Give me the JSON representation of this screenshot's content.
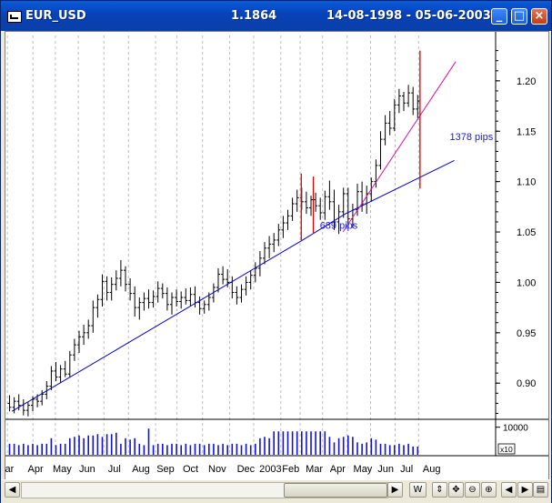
{
  "window": {
    "symbol": "EUR_USD",
    "last_price": "1.1864",
    "date_range": "14-08-1998 - 05-06-2003",
    "buttons": {
      "minimize": "_",
      "maximize": "□",
      "close": "×"
    }
  },
  "toolbar": {
    "period_label": "W"
  },
  "colors": {
    "bars": "#000000",
    "trendline": "#0000cc",
    "steep_trendline": "#e0109a",
    "marker": "#e00000",
    "volume": "#1010e0",
    "annotation": "#1a1acc"
  },
  "chart_data": [
    {
      "type": "ohlc",
      "title": "",
      "xlabel": "",
      "ylabel": "",
      "ylim": [
        0.865,
        1.245
      ],
      "yticks": [
        "0.90",
        "0.95",
        "1.00",
        "1.05",
        "1.10",
        "1.15",
        "1.20"
      ],
      "yticks_values": [
        0.9,
        0.95,
        1.0,
        1.05,
        1.1,
        1.15,
        1.2
      ],
      "xticks": [
        "ar",
        "Apr",
        "May",
        "Jun",
        "Jul",
        "Aug",
        "Sep",
        "Oct",
        "Nov",
        "Dec",
        "2003",
        "Feb",
        "Mar",
        "Apr",
        "May",
        "Jun",
        "Jul",
        "Aug"
      ],
      "grid": "vertical dashed at month boundaries",
      "series": [
        {
          "ohlc": [
            [
              0.88,
              0.888,
              0.872,
              0.876
            ],
            [
              0.876,
              0.886,
              0.87,
              0.882
            ],
            [
              0.882,
              0.889,
              0.873,
              0.878
            ],
            [
              0.878,
              0.884,
              0.868,
              0.873
            ],
            [
              0.873,
              0.881,
              0.867,
              0.878
            ],
            [
              0.878,
              0.887,
              0.872,
              0.884
            ],
            [
              0.884,
              0.889,
              0.876,
              0.882
            ],
            [
              0.882,
              0.893,
              0.878,
              0.889
            ],
            [
              0.889,
              0.902,
              0.884,
              0.897
            ],
            [
              0.897,
              0.917,
              0.893,
              0.912
            ],
            [
              0.912,
              0.921,
              0.902,
              0.906
            ],
            [
              0.906,
              0.918,
              0.9,
              0.914
            ],
            [
              0.914,
              0.922,
              0.906,
              0.909
            ],
            [
              0.909,
              0.932,
              0.906,
              0.928
            ],
            [
              0.928,
              0.944,
              0.922,
              0.938
            ],
            [
              0.938,
              0.952,
              0.93,
              0.946
            ],
            [
              0.946,
              0.958,
              0.938,
              0.95
            ],
            [
              0.95,
              0.963,
              0.944,
              0.957
            ],
            [
              0.957,
              0.982,
              0.95,
              0.975
            ],
            [
              0.975,
              0.988,
              0.965,
              0.983
            ],
            [
              0.983,
              1.008,
              0.976,
              1.001
            ],
            [
              1.001,
              1.006,
              0.982,
              0.99
            ],
            [
              0.99,
              1.005,
              0.982,
              0.998
            ],
            [
              0.998,
              1.012,
              0.992,
              1.004
            ],
            [
              1.004,
              1.022,
              0.996,
              1.012
            ],
            [
              1.012,
              1.016,
              0.991,
              0.998
            ],
            [
              0.998,
              1.004,
              0.982,
              0.989
            ],
            [
              0.989,
              0.996,
              0.966,
              0.975
            ],
            [
              0.975,
              0.985,
              0.963,
              0.98
            ],
            [
              0.98,
              0.99,
              0.972,
              0.984
            ],
            [
              0.984,
              0.993,
              0.974,
              0.98
            ],
            [
              0.98,
              0.992,
              0.975,
              0.986
            ],
            [
              0.986,
              1.001,
              0.98,
              0.994
            ],
            [
              0.994,
              0.999,
              0.984,
              0.989
            ],
            [
              0.989,
              0.995,
              0.972,
              0.978
            ],
            [
              0.978,
              0.99,
              0.968,
              0.985
            ],
            [
              0.985,
              0.993,
              0.976,
              0.981
            ],
            [
              0.981,
              0.991,
              0.974,
              0.985
            ],
            [
              0.985,
              0.994,
              0.978,
              0.982
            ],
            [
              0.982,
              0.995,
              0.976,
              0.988
            ],
            [
              0.988,
              0.996,
              0.975,
              0.98
            ],
            [
              0.98,
              0.986,
              0.968,
              0.974
            ],
            [
              0.974,
              0.982,
              0.969,
              0.978
            ],
            [
              0.978,
              0.99,
              0.972,
              0.985
            ],
            [
              0.985,
              0.999,
              0.98,
              0.995
            ],
            [
              0.995,
              1.014,
              0.99,
              1.008
            ],
            [
              1.008,
              1.016,
              0.998,
              1.003
            ],
            [
              1.003,
              1.013,
              0.995,
              1.0
            ],
            [
              1.0,
              1.006,
              0.984,
              0.99
            ],
            [
              0.99,
              0.996,
              0.978,
              0.985
            ],
            [
              0.985,
              0.998,
              0.98,
              0.993
            ],
            [
              0.993,
              1.006,
              0.987,
              1.0
            ],
            [
              1.0,
              1.012,
              0.993,
              1.007
            ],
            [
              1.007,
              1.02,
              1.0,
              1.014
            ],
            [
              1.014,
              1.031,
              1.006,
              1.024
            ],
            [
              1.024,
              1.04,
              1.018,
              1.034
            ],
            [
              1.034,
              1.046,
              1.024,
              1.038
            ],
            [
              1.038,
              1.049,
              1.03,
              1.042
            ],
            [
              1.042,
              1.058,
              1.036,
              1.052
            ],
            [
              1.052,
              1.066,
              1.044,
              1.059
            ],
            [
              1.059,
              1.072,
              1.052,
              1.066
            ],
            [
              1.066,
              1.084,
              1.061,
              1.078
            ],
            [
              1.078,
              1.092,
              1.07,
              1.084
            ],
            [
              1.084,
              1.094,
              1.072,
              1.08
            ],
            [
              1.08,
              1.09,
              1.068,
              1.074
            ],
            [
              1.074,
              1.086,
              1.066,
              1.082
            ],
            [
              1.082,
              1.089,
              1.07,
              1.076
            ],
            [
              1.076,
              1.084,
              1.062,
              1.069
            ],
            [
              1.069,
              1.091,
              1.062,
              1.085
            ],
            [
              1.085,
              1.101,
              1.072,
              1.08
            ],
            [
              1.08,
              1.092,
              1.052,
              1.06
            ],
            [
              1.06,
              1.077,
              1.048,
              1.07
            ],
            [
              1.07,
              1.094,
              1.064,
              1.088
            ],
            [
              1.088,
              1.094,
              1.054,
              1.063
            ],
            [
              1.063,
              1.078,
              1.054,
              1.072
            ],
            [
              1.072,
              1.098,
              1.066,
              1.09
            ],
            [
              1.09,
              1.1,
              1.07,
              1.078
            ],
            [
              1.078,
              1.096,
              1.068,
              1.088
            ],
            [
              1.088,
              1.104,
              1.08,
              1.1
            ],
            [
              1.1,
              1.122,
              1.094,
              1.116
            ],
            [
              1.116,
              1.15,
              1.112,
              1.142
            ],
            [
              1.142,
              1.166,
              1.136,
              1.158
            ],
            [
              1.158,
              1.17,
              1.146,
              1.153
            ],
            [
              1.153,
              1.182,
              1.15,
              1.176
            ],
            [
              1.176,
              1.192,
              1.168,
              1.185
            ],
            [
              1.185,
              1.189,
              1.17,
              1.178
            ],
            [
              1.178,
              1.196,
              1.174,
              1.188
            ],
            [
              1.188,
              1.194,
              1.166,
              1.172
            ],
            [
              1.172,
              1.186,
              1.163,
              1.18
            ]
          ]
        }
      ],
      "trendlines": [
        {
          "name": "support",
          "points": [
            [
              0.6,
              0.872
            ],
            [
              63.3,
              1.042
            ],
            [
              72.5,
              1.068
            ],
            [
              96.0,
              1.121
            ]
          ]
        },
        {
          "name": "steep",
          "points": [
            [
              72.0,
              1.05
            ],
            [
              96.3,
              1.219
            ]
          ]
        }
      ],
      "markers": [
        {
          "x": 63.0,
          "y_top": 1.108,
          "y_bottom": 1.042
        },
        {
          "x": 65.6,
          "y_top": 1.105,
          "y_bottom": 1.049
        },
        {
          "x": 88.6,
          "y_top": 1.23,
          "y_bottom": 1.093
        }
      ],
      "annotations": [
        {
          "text": "689 pips",
          "x": 67.0,
          "y": 1.053
        },
        {
          "text": "1378 pips",
          "x": 95.0,
          "y": 1.141
        }
      ]
    },
    {
      "type": "bar",
      "title": "",
      "ylabel": "",
      "ylim": [
        0,
        12200
      ],
      "yticks": [
        "10000"
      ],
      "yticks_values": [
        10000
      ],
      "scale_label": "x10",
      "values": [
        4000,
        4000,
        3500,
        4000,
        3500,
        4000,
        3500,
        4000,
        4000,
        6000,
        3500,
        4000,
        4000,
        6000,
        6500,
        7000,
        6000,
        7000,
        7000,
        7500,
        6500,
        7500,
        7500,
        8000,
        4000,
        6000,
        5500,
        6000,
        4000,
        3500,
        9500,
        3500,
        4000,
        4000,
        3500,
        4000,
        4000,
        3500,
        4000,
        3500,
        4000,
        4000,
        3500,
        4000,
        4000,
        3500,
        4000,
        3500,
        4000,
        4000,
        3500,
        4000,
        3500,
        4000,
        6000,
        6500,
        6000,
        8500,
        8500,
        8500,
        8500,
        8500,
        8500,
        8500,
        8500,
        8500,
        8500,
        8500,
        8500,
        6500,
        4500,
        6000,
        6500,
        7000,
        6500,
        4500,
        4000,
        4500,
        6000,
        5500,
        4000,
        4000,
        3500,
        3500,
        4000,
        3500,
        4000,
        3000,
        3000
      ]
    }
  ]
}
